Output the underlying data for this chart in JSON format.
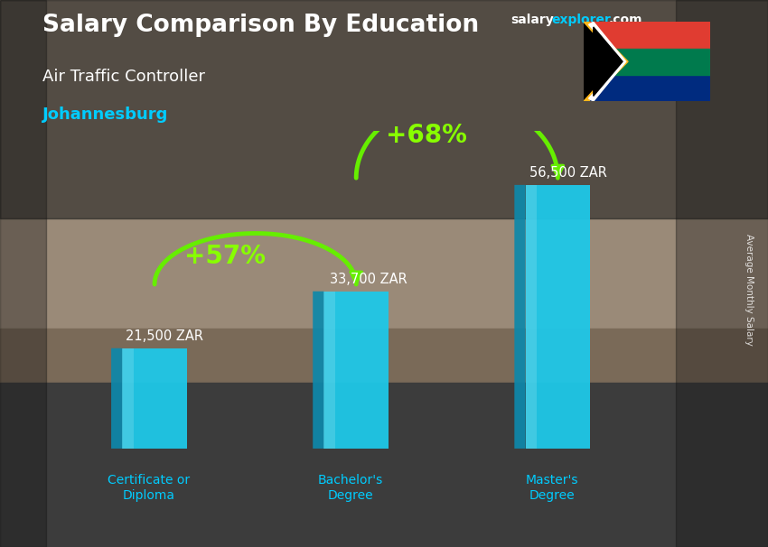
{
  "title_main": "Salary Comparison By Education",
  "subtitle1": "Air Traffic Controller",
  "subtitle2": "Johannesburg",
  "categories": [
    "Certificate or\nDiploma",
    "Bachelor's\nDegree",
    "Master's\nDegree"
  ],
  "values": [
    21500,
    33700,
    56500
  ],
  "value_labels": [
    "21,500 ZAR",
    "33,700 ZAR",
    "56,500 ZAR"
  ],
  "pct_labels": [
    "+57%",
    "+68%"
  ],
  "bar_front": "#1ec8e8",
  "bar_left": "#0e88aa",
  "bar_top": "#80e8ff",
  "bg_top_color": "#8a7a6a",
  "bg_bottom_color": "#3a3a3a",
  "title_color": "#ffffff",
  "subtitle1_color": "#ffffff",
  "subtitle2_color": "#00ccff",
  "cat_label_color": "#00ccff",
  "val_label_color": "#ffffff",
  "pct_color": "#88ff00",
  "arrow_color": "#66ee00",
  "site_salary_color": "#ffffff",
  "site_explorer_color": "#00ccff",
  "site_com_color": "#ffffff",
  "ylabel_text": "Average Monthly Salary",
  "ylim_max": 68000,
  "bar_width": 0.32,
  "bar_depth": 0.055
}
